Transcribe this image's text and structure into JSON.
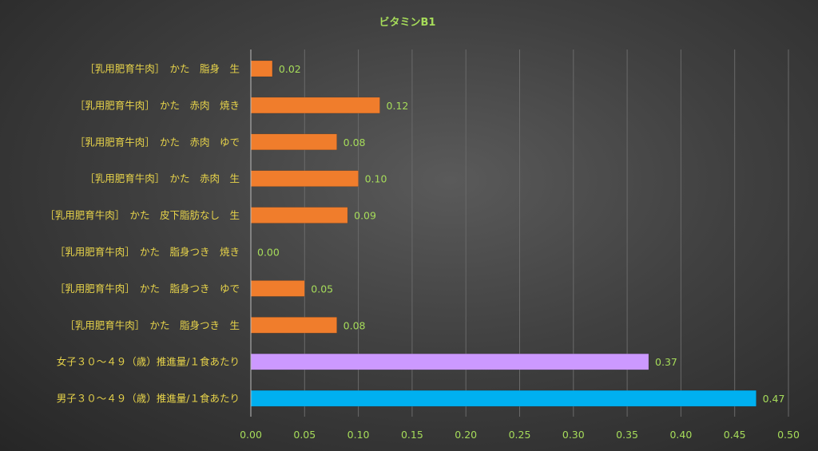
{
  "chart_data": {
    "type": "bar",
    "orientation": "horizontal",
    "title": "ビタミンB1",
    "categories": [
      "［乳用肥育牛肉］　かた　脂身　生",
      "［乳用肥育牛肉］　かた　赤肉　焼き",
      "［乳用肥育牛肉］　かた　赤肉　ゆで",
      "［乳用肥育牛肉］　かた　赤肉　生",
      "［乳用肥育牛肉］　かた　皮下脂肪なし　生",
      "［乳用肥育牛肉］　かた　脂身つき　焼き",
      "［乳用肥育牛肉］　かた　脂身つき　ゆで",
      "［乳用肥育牛肉］　かた　脂身つき　生",
      "女子３０～４９（歳）推進量/１食あたり",
      "男子３０～４９（歳）推進量/１食あたり"
    ],
    "values": [
      0.02,
      0.12,
      0.08,
      0.1,
      0.09,
      0.0,
      0.05,
      0.08,
      0.37,
      0.47
    ],
    "data_labels": [
      "0.02",
      "0.12",
      "0.08",
      "0.10",
      "0.09",
      "0.00",
      "0.05",
      "0.08",
      "0.37",
      "0.47"
    ],
    "bar_colors": [
      "#f07d2c",
      "#f07d2c",
      "#f07d2c",
      "#f07d2c",
      "#f07d2c",
      "#f07d2c",
      "#f07d2c",
      "#f07d2c",
      "#cc99ff",
      "#00b0f0"
    ],
    "xlim": [
      0,
      0.5
    ],
    "xticks": [
      0,
      0.05,
      0.1,
      0.15,
      0.2,
      0.25,
      0.3,
      0.35,
      0.4,
      0.45,
      0.5
    ],
    "xtick_labels": [
      "0.00",
      "0.05",
      "0.10",
      "0.15",
      "0.20",
      "0.25",
      "0.30",
      "0.35",
      "0.40",
      "0.45",
      "0.50"
    ],
    "grid": true,
    "legend": "none",
    "colors": {
      "title": "#a6dc5a",
      "category_labels": "#e8d44a",
      "tick_labels": "#a6dc5a",
      "data_labels": "#a6dc5a",
      "gridlines": "#6a6a6a"
    }
  }
}
